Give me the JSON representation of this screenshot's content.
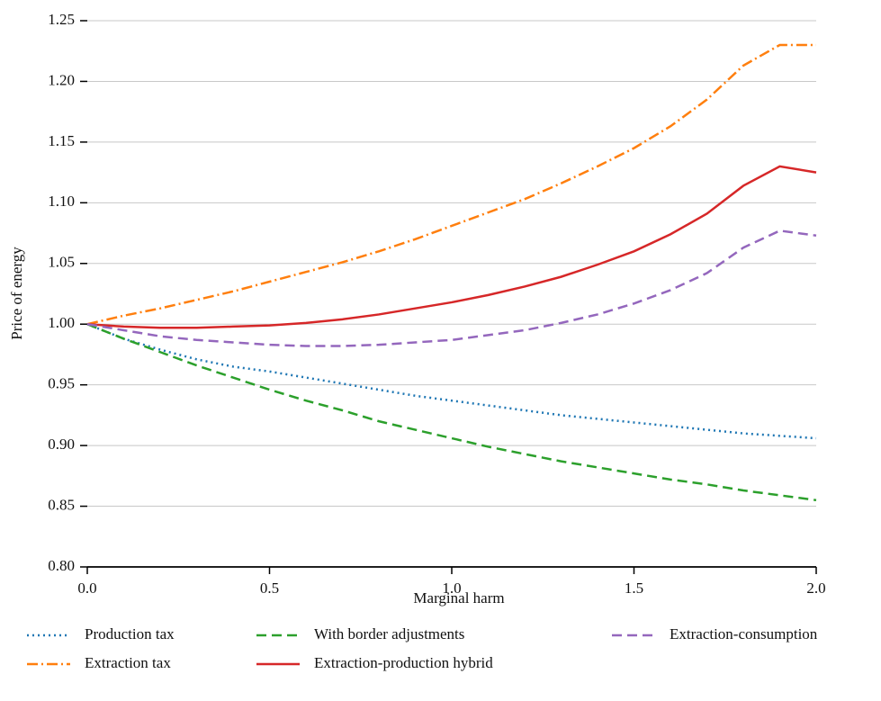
{
  "chart_data": {
    "type": "line",
    "x_label": "Marginal harm",
    "y_label": "Price of energy",
    "x": [
      0,
      0.1,
      0.2,
      0.3,
      0.4,
      0.5,
      0.6,
      0.7,
      0.8,
      0.9,
      1.0,
      1.1,
      1.2,
      1.3,
      1.4,
      1.5,
      1.6,
      1.7,
      1.8,
      1.9,
      2.0
    ],
    "xlim": [
      0,
      2.0
    ],
    "xticks": [
      {
        "value": 0,
        "label": "0.0"
      },
      0.5,
      {
        "value": 1,
        "label": "1.0"
      },
      1.5,
      {
        "value": 2,
        "label": "2.0"
      }
    ],
    "ylim": [
      0.8,
      1.25
    ],
    "yticks": [
      {
        "value": 0.8,
        "label": "0.80"
      },
      0.85,
      {
        "value": 0.9,
        "label": "0.90"
      },
      0.95,
      {
        "value": 1,
        "label": "1.00"
      },
      1.05,
      {
        "value": 1.1,
        "label": "1.10"
      },
      1.15,
      {
        "value": 1.2,
        "label": "1.20"
      },
      1.25
    ],
    "grid": true,
    "legend": "bottom",
    "series": [
      {
        "name": "Production tax",
        "color": "#1f77b4",
        "linestyle": "dotted",
        "values": [
          1.0,
          0.988,
          0.979,
          0.971,
          0.965,
          0.961,
          0.956,
          0.951,
          0.946,
          0.941,
          0.937,
          0.933,
          0.929,
          0.925,
          0.922,
          0.919,
          0.916,
          0.913,
          0.91,
          0.908,
          0.906
        ]
      },
      {
        "name": "Extraction tax",
        "color": "#ff7f0e",
        "linestyle": "dashdot",
        "values": [
          1.0,
          1.007,
          1.013,
          1.02,
          1.027,
          1.035,
          1.043,
          1.051,
          1.06,
          1.07,
          1.081,
          1.092,
          1.103,
          1.116,
          1.13,
          1.145,
          1.163,
          1.185,
          1.213,
          1.23,
          1.23
        ]
      },
      {
        "name": "With border adjustments",
        "color": "#2ca02c",
        "linestyle": "dashed",
        "values": [
          1.0,
          0.988,
          0.977,
          0.966,
          0.956,
          0.946,
          0.937,
          0.929,
          0.92,
          0.913,
          0.906,
          0.899,
          0.893,
          0.887,
          0.882,
          0.877,
          0.872,
          0.868,
          0.863,
          0.859,
          0.855
        ]
      },
      {
        "name": "Extraction-production hybrid",
        "color": "#d62728",
        "linestyle": "solid",
        "values": [
          1.0,
          0.998,
          0.997,
          0.997,
          0.998,
          0.999,
          1.001,
          1.004,
          1.008,
          1.013,
          1.018,
          1.024,
          1.031,
          1.039,
          1.049,
          1.06,
          1.074,
          1.091,
          1.114,
          1.13,
          1.125
        ]
      },
      {
        "name": "Extraction-consumption",
        "color": "#9467bd",
        "linestyle": "dashed",
        "values": [
          1.0,
          0.995,
          0.99,
          0.987,
          0.985,
          0.983,
          0.982,
          0.982,
          0.983,
          0.985,
          0.987,
          0.991,
          0.995,
          1.001,
          1.008,
          1.017,
          1.028,
          1.042,
          1.063,
          1.077,
          1.073
        ]
      }
    ]
  }
}
